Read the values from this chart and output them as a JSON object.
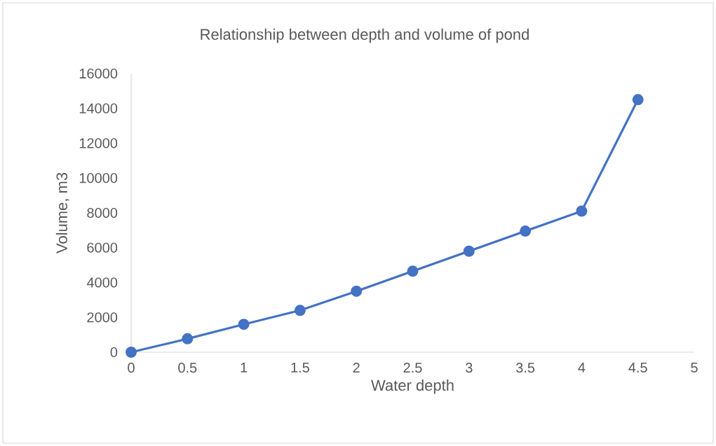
{
  "chart_data": {
    "type": "line",
    "title": "Relationship between depth and volume of pond",
    "xlabel": "Water depth",
    "ylabel": "Volume, m3",
    "x": [
      0,
      0.5,
      1,
      1.5,
      2,
      2.5,
      3,
      3.5,
      4,
      4.5
    ],
    "series": [
      {
        "color": "#4472c4",
        "values": [
          0,
          770,
          1600,
          2400,
          3500,
          4650,
          5800,
          6950,
          8100,
          14500
        ]
      }
    ],
    "xlim": [
      0,
      5
    ],
    "xticks": [
      0,
      0.5,
      1,
      1.5,
      2,
      2.5,
      3,
      3.5,
      4,
      4.5,
      5
    ],
    "ylim": [
      0,
      16000
    ],
    "yticks": [
      0,
      2000,
      4000,
      6000,
      8000,
      10000,
      12000,
      14000,
      16000
    ],
    "marker": "circle",
    "line_style": "solid"
  }
}
